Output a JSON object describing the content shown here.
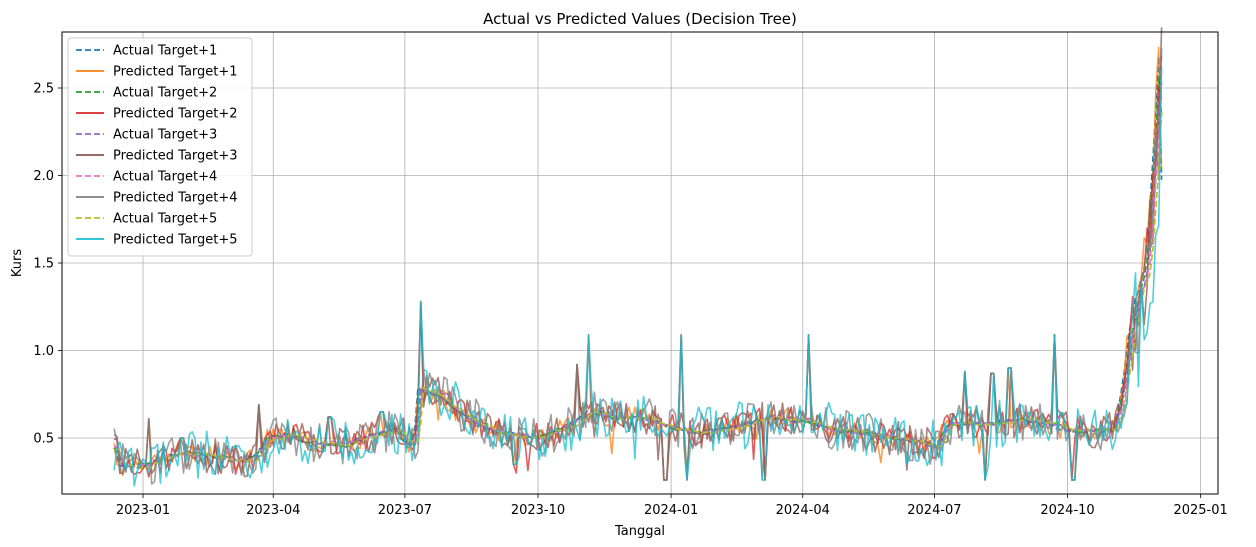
{
  "chart_data": {
    "type": "line",
    "title": "Actual vs Predicted Values (Decision Tree)",
    "xlabel": "Tanggal",
    "ylabel": "Kurs",
    "x_start": "2022-12-12",
    "x_end": "2024-12-06",
    "xlim": [
      "2022-11-06",
      "2025-01-13"
    ],
    "ylim": [
      0.18,
      2.82
    ],
    "x_ticks": [
      {
        "date": "2023-01-01",
        "label": "2023-01"
      },
      {
        "date": "2023-04-01",
        "label": "2023-04"
      },
      {
        "date": "2023-07-01",
        "label": "2023-07"
      },
      {
        "date": "2023-10-01",
        "label": "2023-10"
      },
      {
        "date": "2024-01-01",
        "label": "2024-01"
      },
      {
        "date": "2024-04-01",
        "label": "2024-04"
      },
      {
        "date": "2024-07-01",
        "label": "2024-07"
      },
      {
        "date": "2024-10-01",
        "label": "2024-10"
      },
      {
        "date": "2025-01-01",
        "label": "2025-01"
      }
    ],
    "y_ticks": [
      {
        "value": 0.5,
        "label": "0.5"
      },
      {
        "value": 1.0,
        "label": "1.0"
      },
      {
        "value": 1.5,
        "label": "1.5"
      },
      {
        "value": 2.0,
        "label": "2.0"
      },
      {
        "value": 2.5,
        "label": "2.5"
      }
    ],
    "grid": true,
    "legend_position": "top-left",
    "base_profile": [
      {
        "date": "2022-12-12",
        "value": 0.44
      },
      {
        "date": "2022-12-16",
        "value": 0.34
      },
      {
        "date": "2023-01-01",
        "value": 0.34
      },
      {
        "date": "2023-01-12",
        "value": 0.38
      },
      {
        "date": "2023-01-25",
        "value": 0.41
      },
      {
        "date": "2023-02-15",
        "value": 0.4
      },
      {
        "date": "2023-03-05",
        "value": 0.37
      },
      {
        "date": "2023-03-18",
        "value": 0.38
      },
      {
        "date": "2023-03-28",
        "value": 0.5
      },
      {
        "date": "2023-04-10",
        "value": 0.52
      },
      {
        "date": "2023-04-25",
        "value": 0.48
      },
      {
        "date": "2023-05-20",
        "value": 0.46
      },
      {
        "date": "2023-06-10",
        "value": 0.52
      },
      {
        "date": "2023-06-25",
        "value": 0.55
      },
      {
        "date": "2023-07-01",
        "value": 0.48
      },
      {
        "date": "2023-07-07",
        "value": 0.47
      },
      {
        "date": "2023-07-10",
        "value": 0.78
      },
      {
        "date": "2023-07-25",
        "value": 0.74
      },
      {
        "date": "2023-08-05",
        "value": 0.66
      },
      {
        "date": "2023-08-20",
        "value": 0.58
      },
      {
        "date": "2023-09-05",
        "value": 0.53
      },
      {
        "date": "2023-10-01",
        "value": 0.5
      },
      {
        "date": "2023-10-20",
        "value": 0.56
      },
      {
        "date": "2023-11-05",
        "value": 0.65
      },
      {
        "date": "2023-11-20",
        "value": 0.62
      },
      {
        "date": "2023-12-10",
        "value": 0.62
      },
      {
        "date": "2024-01-01",
        "value": 0.56
      },
      {
        "date": "2024-01-20",
        "value": 0.53
      },
      {
        "date": "2024-02-10",
        "value": 0.56
      },
      {
        "date": "2024-03-10",
        "value": 0.62
      },
      {
        "date": "2024-04-01",
        "value": 0.6
      },
      {
        "date": "2024-04-20",
        "value": 0.55
      },
      {
        "date": "2024-05-10",
        "value": 0.53
      },
      {
        "date": "2024-06-01",
        "value": 0.5
      },
      {
        "date": "2024-06-20",
        "value": 0.48
      },
      {
        "date": "2024-07-01",
        "value": 0.45
      },
      {
        "date": "2024-07-10",
        "value": 0.58
      },
      {
        "date": "2024-08-01",
        "value": 0.58
      },
      {
        "date": "2024-09-01",
        "value": 0.6
      },
      {
        "date": "2024-09-20",
        "value": 0.58
      },
      {
        "date": "2024-10-01",
        "value": 0.54
      },
      {
        "date": "2024-10-20",
        "value": 0.54
      },
      {
        "date": "2024-11-01",
        "value": 0.55
      },
      {
        "date": "2024-11-06",
        "value": 0.7
      },
      {
        "date": "2024-11-12",
        "value": 1.05
      },
      {
        "date": "2024-11-18",
        "value": 1.3
      },
      {
        "date": "2024-11-24",
        "value": 1.5
      },
      {
        "date": "2024-11-30",
        "value": 2.2
      },
      {
        "date": "2024-12-03",
        "value": 2.7
      },
      {
        "date": "2024-12-06",
        "value": 1.6
      }
    ],
    "spikes": [
      {
        "date": "2023-03-22",
        "value": 0.69
      },
      {
        "date": "2023-07-12",
        "value": 1.28
      },
      {
        "date": "2023-11-05",
        "value": 1.09
      },
      {
        "date": "2023-10-28",
        "value": 0.92
      },
      {
        "date": "2024-01-08",
        "value": 1.09
      },
      {
        "date": "2024-04-05",
        "value": 1.09
      },
      {
        "date": "2024-09-22",
        "value": 1.09
      },
      {
        "date": "2024-07-22",
        "value": 0.88
      },
      {
        "date": "2024-08-10",
        "value": 0.87
      },
      {
        "date": "2024-08-22",
        "value": 0.9
      },
      {
        "date": "2023-01-05",
        "value": 0.61
      },
      {
        "date": "2023-01-28",
        "value": 0.5
      },
      {
        "date": "2023-05-10",
        "value": 0.62
      },
      {
        "date": "2023-06-15",
        "value": 0.65
      },
      {
        "date": "2023-09-15",
        "value": 0.35
      },
      {
        "date": "2023-12-28",
        "value": 0.26
      },
      {
        "date": "2024-01-12",
        "value": 0.26
      },
      {
        "date": "2024-03-05",
        "value": 0.26
      },
      {
        "date": "2024-10-05",
        "value": 0.26
      },
      {
        "date": "2024-08-05",
        "value": 0.26
      }
    ],
    "series": [
      {
        "name": "Actual Target+1",
        "style": "dashed",
        "color": "#1f77b4",
        "shift_days": 0
      },
      {
        "name": "Predicted Target+1",
        "style": "solid",
        "color": "#ff7f0e",
        "shift_days": 0
      },
      {
        "name": "Actual Target+2",
        "style": "dashed",
        "color": "#2ca02c",
        "shift_days": -1
      },
      {
        "name": "Predicted Target+2",
        "style": "solid",
        "color": "#d62728",
        "shift_days": -1
      },
      {
        "name": "Actual Target+3",
        "style": "dashed",
        "color": "#9467bd",
        "shift_days": -2
      },
      {
        "name": "Predicted Target+3",
        "style": "solid",
        "color": "#8c564b",
        "shift_days": -2
      },
      {
        "name": "Actual Target+4",
        "style": "dashed",
        "color": "#e377c2",
        "shift_days": -3
      },
      {
        "name": "Predicted Target+4",
        "style": "solid",
        "color": "#7f7f7f",
        "shift_days": -3
      },
      {
        "name": "Actual Target+5",
        "style": "dashed",
        "color": "#bcbd22",
        "shift_days": -4
      },
      {
        "name": "Predicted Target+5",
        "style": "solid",
        "color": "#17becf",
        "shift_days": -4
      }
    ]
  }
}
